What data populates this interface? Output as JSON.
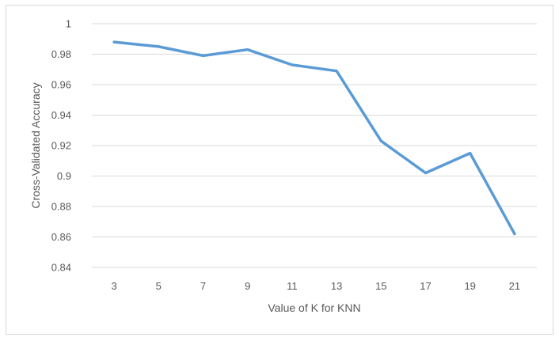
{
  "chart_data": {
    "type": "line",
    "title": "",
    "xlabel": "Value of K for KNN",
    "ylabel": "Cross-Validated Accuracy",
    "categories": [
      "3",
      "5",
      "7",
      "9",
      "11",
      "13",
      "15",
      "17",
      "19",
      "21"
    ],
    "series": [
      {
        "values": [
          0.988,
          0.985,
          0.979,
          0.983,
          0.973,
          0.969,
          0.923,
          0.902,
          0.915,
          0.862
        ],
        "color": "#5b9bd5"
      }
    ],
    "ylim": [
      0.84,
      1.0
    ],
    "yticks": [
      0.84,
      0.86,
      0.88,
      0.9,
      0.92,
      0.94,
      0.96,
      0.98,
      1
    ],
    "ytick_labels": [
      "0.84",
      "0.86",
      "0.88",
      "0.9",
      "0.92",
      "0.94",
      "0.96",
      "0.98",
      "1"
    ],
    "grid": true,
    "legend": "none",
    "gridline_color": "#d9d9d9",
    "text_color": "#595959"
  }
}
